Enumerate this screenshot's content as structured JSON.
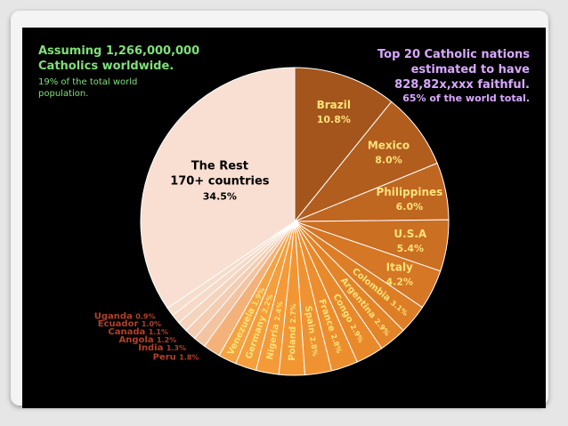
{
  "annotations": {
    "left_title": "Assuming 1,266,000,000\nCatholics worldwide.",
    "left_sub": "19% of the total world\npopulation.",
    "right_title": "Top 20 Catholic nations\nestimated to have\n828,82x,xxx faithful.",
    "right_sub": "65% of the world total."
  },
  "chart_data": {
    "type": "pie",
    "title": "",
    "unit": "%",
    "slices": [
      {
        "name": "Brazil",
        "value": 10.8,
        "label": "10.8%",
        "color": "#a3551c"
      },
      {
        "name": "Mexico",
        "value": 8.0,
        "label": "8.0%",
        "color": "#b15d1e"
      },
      {
        "name": "Philippines",
        "value": 6.0,
        "label": "6.0%",
        "color": "#bf6620"
      },
      {
        "name": "U.S.A",
        "value": 5.4,
        "label": "5.4%",
        "color": "#cb6f22"
      },
      {
        "name": "Italy",
        "value": 4.2,
        "label": "4.2%",
        "color": "#d57725"
      },
      {
        "name": "Colombia",
        "value": 3.1,
        "label": "3.1%",
        "color": "#dd7e27"
      },
      {
        "name": "Argentina",
        "value": 2.9,
        "label": "2.9%",
        "color": "#e38429"
      },
      {
        "name": "Congo",
        "value": 2.9,
        "label": "2.9%",
        "color": "#e8892b"
      },
      {
        "name": "France",
        "value": 2.8,
        "label": "2.8%",
        "color": "#ec8e2e"
      },
      {
        "name": "Spain",
        "value": 2.8,
        "label": "2.8%",
        "color": "#ef9231"
      },
      {
        "name": "Poland",
        "value": 2.7,
        "label": "2.7%",
        "color": "#f29634"
      },
      {
        "name": "Nigeria",
        "value": 2.4,
        "label": "2.4%",
        "color": "#f49a38"
      },
      {
        "name": "Germany",
        "value": 2.2,
        "label": "2.2%",
        "color": "#f59e3c"
      },
      {
        "name": "Venezuela",
        "value": 1.9,
        "label": "1.9%",
        "color": "#f5a241"
      },
      {
        "name": "Peru",
        "value": 1.8,
        "label": "1.8%",
        "color": "#f4b27a"
      },
      {
        "name": "India",
        "value": 1.3,
        "label": "1.3%",
        "color": "#f3c4a2"
      },
      {
        "name": "Angola",
        "value": 1.2,
        "label": "1.2%",
        "color": "#f4cdb2"
      },
      {
        "name": "Canada",
        "value": 1.1,
        "label": "1.1%",
        "color": "#f5d4bd"
      },
      {
        "name": "Ecuador",
        "value": 1.0,
        "label": "1.0%",
        "color": "#f6d9c6"
      },
      {
        "name": "Uganda",
        "value": 0.9,
        "label": "0.9%",
        "color": "#f7ddcb"
      },
      {
        "name": "The Rest\n170+ countries",
        "value": 34.5,
        "label": "34.5%",
        "color": "#f8dfd2"
      }
    ]
  }
}
